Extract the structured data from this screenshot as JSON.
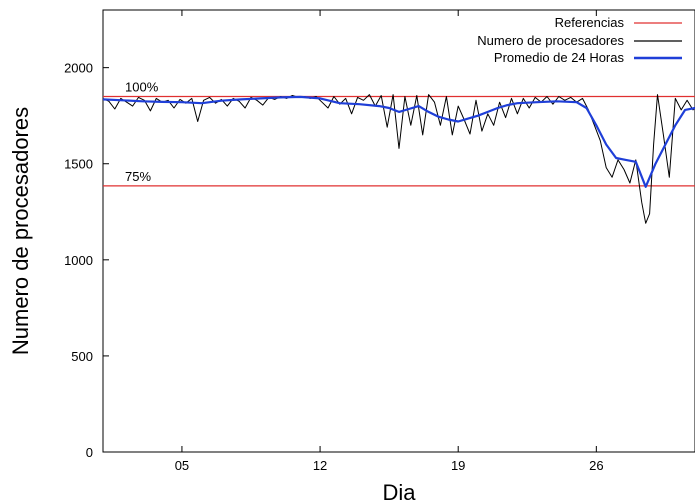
{
  "chart_data": {
    "type": "line",
    "xlabel": "Dia",
    "ylabel": "Numero de procesadores",
    "xlim": [
      1,
      31
    ],
    "ylim": [
      0,
      2300
    ],
    "x_ticks": [
      {
        "value": 5,
        "label": "05"
      },
      {
        "value": 12,
        "label": "12"
      },
      {
        "value": 19,
        "label": "19"
      },
      {
        "value": 26,
        "label": "26"
      }
    ],
    "y_ticks": [
      0,
      500,
      1000,
      1500,
      2000
    ],
    "legend_position": "top-right",
    "grid": false,
    "reference_lines": [
      {
        "label": "100%",
        "value": 1850,
        "color": "#e03030"
      },
      {
        "label": "75%",
        "value": 1385,
        "color": "#e03030"
      }
    ],
    "series": [
      {
        "name": "Referencias",
        "color": "#e03030",
        "style": "reference"
      },
      {
        "name": "Numero de procesadores",
        "color": "#000000",
        "points": [
          [
            1,
            1840
          ],
          [
            1.3,
            1825
          ],
          [
            1.6,
            1785
          ],
          [
            1.9,
            1840
          ],
          [
            2.2,
            1820
          ],
          [
            2.5,
            1800
          ],
          [
            2.8,
            1845
          ],
          [
            3.1,
            1830
          ],
          [
            3.4,
            1775
          ],
          [
            3.7,
            1840
          ],
          [
            4,
            1820
          ],
          [
            4.3,
            1830
          ],
          [
            4.6,
            1790
          ],
          [
            4.9,
            1835
          ],
          [
            5.2,
            1815
          ],
          [
            5.5,
            1840
          ],
          [
            5.8,
            1720
          ],
          [
            6.1,
            1830
          ],
          [
            6.4,
            1845
          ],
          [
            6.7,
            1815
          ],
          [
            7,
            1835
          ],
          [
            7.3,
            1800
          ],
          [
            7.6,
            1840
          ],
          [
            7.9,
            1825
          ],
          [
            8.2,
            1790
          ],
          [
            8.5,
            1845
          ],
          [
            8.8,
            1830
          ],
          [
            9.1,
            1805
          ],
          [
            9.4,
            1845
          ],
          [
            9.7,
            1835
          ],
          [
            10,
            1850
          ],
          [
            10.3,
            1840
          ],
          [
            10.6,
            1855
          ],
          [
            10.9,
            1845
          ],
          [
            11.2,
            1850
          ],
          [
            11.5,
            1840
          ],
          [
            11.8,
            1850
          ],
          [
            12.1,
            1820
          ],
          [
            12.4,
            1790
          ],
          [
            12.7,
            1850
          ],
          [
            13,
            1810
          ],
          [
            13.3,
            1840
          ],
          [
            13.6,
            1760
          ],
          [
            13.9,
            1845
          ],
          [
            14.2,
            1830
          ],
          [
            14.5,
            1860
          ],
          [
            14.8,
            1800
          ],
          [
            15.1,
            1855
          ],
          [
            15.4,
            1690
          ],
          [
            15.7,
            1860
          ],
          [
            16,
            1580
          ],
          [
            16.3,
            1850
          ],
          [
            16.6,
            1700
          ],
          [
            16.9,
            1855
          ],
          [
            17.2,
            1650
          ],
          [
            17.5,
            1860
          ],
          [
            17.8,
            1820
          ],
          [
            18.1,
            1700
          ],
          [
            18.4,
            1850
          ],
          [
            18.7,
            1650
          ],
          [
            19,
            1800
          ],
          [
            19.3,
            1730
          ],
          [
            19.6,
            1655
          ],
          [
            19.9,
            1830
          ],
          [
            20.2,
            1670
          ],
          [
            20.5,
            1760
          ],
          [
            20.8,
            1700
          ],
          [
            21.1,
            1820
          ],
          [
            21.4,
            1740
          ],
          [
            21.7,
            1840
          ],
          [
            22,
            1760
          ],
          [
            22.3,
            1840
          ],
          [
            22.6,
            1790
          ],
          [
            22.9,
            1845
          ],
          [
            23.2,
            1820
          ],
          [
            23.5,
            1850
          ],
          [
            23.8,
            1810
          ],
          [
            24.1,
            1850
          ],
          [
            24.4,
            1830
          ],
          [
            24.7,
            1845
          ],
          [
            25,
            1820
          ],
          [
            25.3,
            1840
          ],
          [
            25.6,
            1780
          ],
          [
            25.9,
            1700
          ],
          [
            26.2,
            1620
          ],
          [
            26.5,
            1480
          ],
          [
            26.8,
            1430
          ],
          [
            27.1,
            1520
          ],
          [
            27.4,
            1470
          ],
          [
            27.7,
            1400
          ],
          [
            28,
            1520
          ],
          [
            28.3,
            1300
          ],
          [
            28.5,
            1190
          ],
          [
            28.7,
            1240
          ],
          [
            28.9,
            1600
          ],
          [
            29.1,
            1860
          ],
          [
            29.4,
            1650
          ],
          [
            29.7,
            1430
          ],
          [
            30,
            1840
          ],
          [
            30.3,
            1780
          ],
          [
            30.6,
            1830
          ],
          [
            30.9,
            1780
          ],
          [
            31,
            1790
          ]
        ]
      },
      {
        "name": "Promedio de 24 Horas",
        "color": "#1f3fd8",
        "points": [
          [
            1,
            1835
          ],
          [
            2,
            1830
          ],
          [
            3,
            1825
          ],
          [
            4,
            1822
          ],
          [
            5,
            1820
          ],
          [
            6,
            1815
          ],
          [
            7,
            1828
          ],
          [
            8,
            1835
          ],
          [
            9,
            1840
          ],
          [
            10,
            1845
          ],
          [
            11,
            1848
          ],
          [
            12,
            1840
          ],
          [
            13,
            1815
          ],
          [
            14,
            1810
          ],
          [
            15,
            1800
          ],
          [
            15.5,
            1790
          ],
          [
            16,
            1770
          ],
          [
            16.5,
            1785
          ],
          [
            17,
            1800
          ],
          [
            17.5,
            1770
          ],
          [
            18,
            1745
          ],
          [
            18.5,
            1730
          ],
          [
            19,
            1720
          ],
          [
            19.5,
            1735
          ],
          [
            20,
            1750
          ],
          [
            20.5,
            1770
          ],
          [
            21,
            1790
          ],
          [
            21.5,
            1805
          ],
          [
            22,
            1815
          ],
          [
            23,
            1820
          ],
          [
            24,
            1825
          ],
          [
            25,
            1820
          ],
          [
            25.5,
            1790
          ],
          [
            26,
            1700
          ],
          [
            26.5,
            1600
          ],
          [
            27,
            1530
          ],
          [
            27.5,
            1520
          ],
          [
            28,
            1510
          ],
          [
            28.5,
            1380
          ],
          [
            29,
            1500
          ],
          [
            29.5,
            1600
          ],
          [
            30,
            1700
          ],
          [
            30.5,
            1780
          ],
          [
            31,
            1790
          ]
        ]
      }
    ]
  }
}
